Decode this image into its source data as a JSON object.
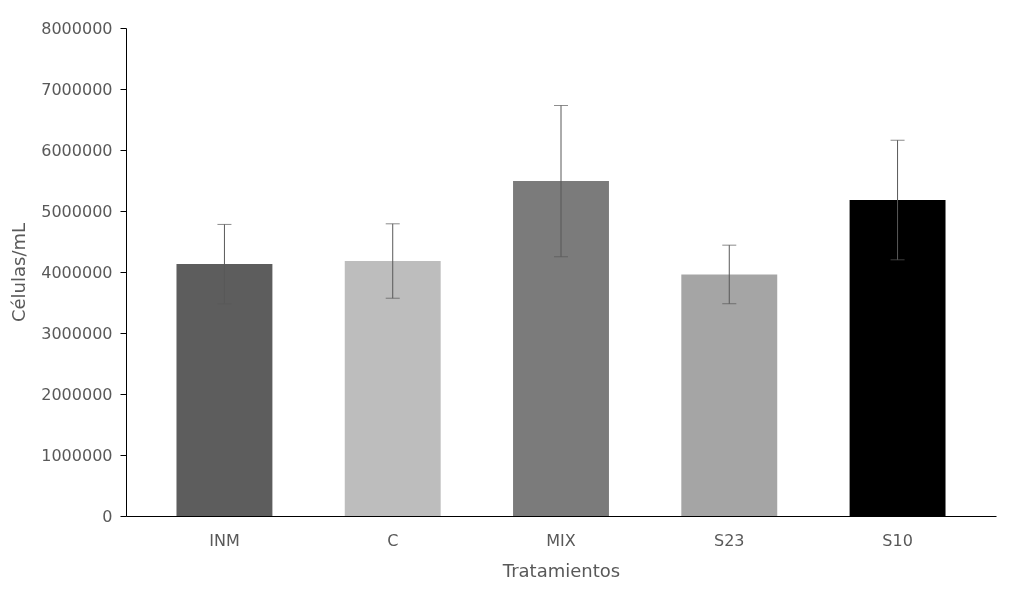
{
  "chart_data": {
    "type": "bar",
    "xlabel": "Tratamientos",
    "ylabel": "Células/mL",
    "categories": [
      "INM",
      "C",
      "MIX",
      "S23",
      "S10"
    ],
    "values": [
      4130000,
      4180000,
      5490000,
      3960000,
      5180000
    ],
    "errors": [
      650000,
      610000,
      1240000,
      480000,
      980000
    ],
    "colors": [
      "#5d5d5d",
      "#bdbdbd",
      "#7b7b7b",
      "#a5a5a5",
      "#000000"
    ],
    "ylim": [
      0,
      8000000
    ],
    "yticks": [
      0,
      1000000,
      2000000,
      3000000,
      4000000,
      5000000,
      6000000,
      7000000,
      8000000
    ],
    "grid": false
  }
}
